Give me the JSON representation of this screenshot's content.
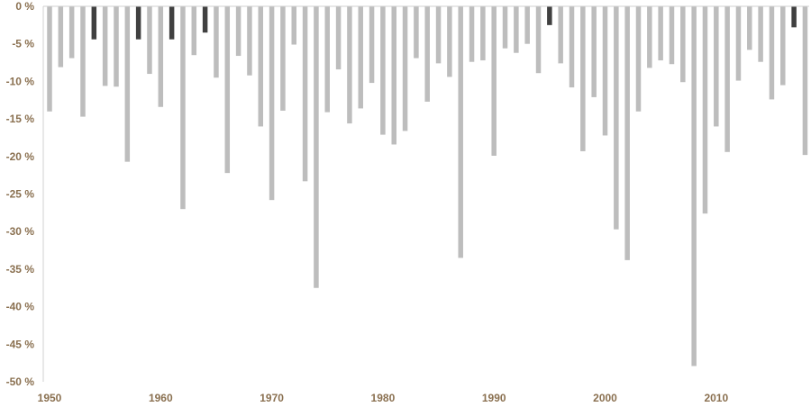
{
  "chart_data": {
    "type": "bar",
    "title": "",
    "xlabel": "",
    "ylabel": "",
    "grid": false,
    "legend": "none",
    "ylim": [
      -50,
      0
    ],
    "y_ticks": [
      0,
      -5,
      -10,
      -15,
      -20,
      -25,
      -30,
      -35,
      -40,
      -45,
      -50
    ],
    "y_tick_labels": [
      "0 %",
      "-5 %",
      "-10 %",
      "-15 %",
      "-20 %",
      "-25 %",
      "-30 %",
      "-35 %",
      "-40 %",
      "-45 %",
      "-50 %"
    ],
    "x_range": [
      1950,
      2018
    ],
    "x_ticks": [
      1950,
      1960,
      1970,
      1980,
      1990,
      2000,
      2010
    ],
    "x_tick_labels": [
      "1950",
      "1960",
      "1970",
      "1980",
      "1990",
      "2000",
      "2010"
    ],
    "colors": {
      "default_bar": "#bdbdbd",
      "highlight_bar": "#404040",
      "tick_label": "#8a7050",
      "axis_line": "#d0d0d0"
    },
    "series": [
      {
        "x": [
          1950,
          1951,
          1952,
          1953,
          1954,
          1955,
          1956,
          1957,
          1958,
          1959,
          1960,
          1961,
          1962,
          1963,
          1964,
          1965,
          1966,
          1967,
          1968,
          1969,
          1970,
          1971,
          1972,
          1973,
          1974,
          1975,
          1976,
          1977,
          1978,
          1979,
          1980,
          1981,
          1982,
          1983,
          1984,
          1985,
          1986,
          1987,
          1988,
          1989,
          1990,
          1991,
          1992,
          1993,
          1994,
          1995,
          1996,
          1997,
          1998,
          1999,
          2000,
          2001,
          2002,
          2003,
          2004,
          2005,
          2006,
          2007,
          2008,
          2009,
          2010,
          2011,
          2012,
          2013,
          2014,
          2015,
          2016,
          2017,
          2018
        ],
        "values": [
          -14.0,
          -8.1,
          -6.9,
          -14.7,
          -4.4,
          -10.6,
          -10.7,
          -20.7,
          -4.4,
          -9.0,
          -13.4,
          -4.4,
          -27.0,
          -6.5,
          -3.5,
          -9.5,
          -22.2,
          -6.6,
          -9.2,
          -16.0,
          -25.8,
          -13.9,
          -5.1,
          -23.3,
          -37.5,
          -14.1,
          -8.4,
          -15.6,
          -13.6,
          -10.2,
          -17.1,
          -18.4,
          -16.6,
          -6.9,
          -12.7,
          -7.6,
          -9.4,
          -33.5,
          -7.4,
          -7.2,
          -19.9,
          -5.6,
          -6.2,
          -5.0,
          -8.9,
          -2.5,
          -7.6,
          -10.8,
          -19.3,
          -12.1,
          -17.2,
          -29.7,
          -33.8,
          -14.0,
          -8.2,
          -7.2,
          -7.7,
          -10.1,
          -47.9,
          -27.6,
          -16.0,
          -19.4,
          -9.9,
          -5.8,
          -7.4,
          -12.4,
          -10.5,
          -2.8,
          -19.8
        ],
        "highlight": [
          1954,
          1958,
          1961,
          1964,
          1995,
          2017
        ]
      }
    ]
  }
}
